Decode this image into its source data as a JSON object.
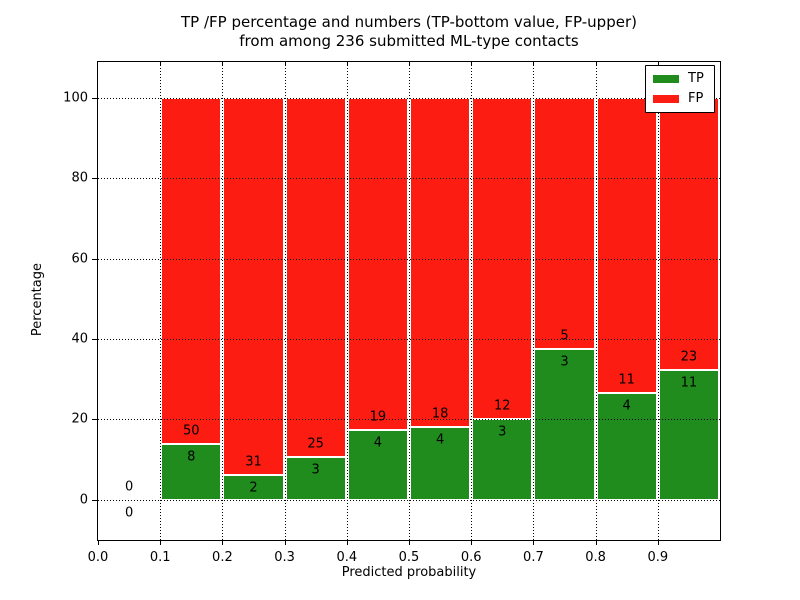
{
  "chart_data": {
    "type": "bar",
    "stacked": true,
    "title": "TP /FP percentage and numbers (TP-bottom value, FP-upper) from among 236 submitted ML-type contacts",
    "title_lines": [
      "TP /FP percentage and numbers (TP-bottom value, FP-upper)",
      "from among 236 submitted ML-type contacts"
    ],
    "xlabel": "Predicted probability",
    "ylabel": "Percentage",
    "total_contacts": 236,
    "xlim": [
      0.0,
      1.0
    ],
    "ylim": [
      -10,
      109
    ],
    "xticks": {
      "values": [
        0.0,
        0.1,
        0.2,
        0.3,
        0.4,
        0.5,
        0.6,
        0.7,
        0.8,
        0.9
      ],
      "labels": [
        "0.0",
        "0.1",
        "0.2",
        "0.3",
        "0.4",
        "0.5",
        "0.6",
        "0.7",
        "0.8",
        "0.9"
      ]
    },
    "yticks": {
      "values": [
        0,
        20,
        40,
        60,
        80,
        100
      ],
      "labels": [
        "0",
        "20",
        "40",
        "60",
        "80",
        "100"
      ]
    },
    "grid": {
      "on": true,
      "style": "dotted",
      "color": "#000000",
      "over_bars": true
    },
    "series": [
      {
        "name": "TP",
        "color": "#1f8c1d"
      },
      {
        "name": "FP",
        "color": "#fc1c12"
      }
    ],
    "legend": {
      "position": "upper right",
      "entries": [
        "TP",
        "FP"
      ]
    },
    "bins": [
      {
        "range": [
          0.0,
          0.1
        ],
        "tp": 0,
        "fp": 0
      },
      {
        "range": [
          0.1,
          0.2
        ],
        "tp": 8,
        "fp": 50
      },
      {
        "range": [
          0.2,
          0.3
        ],
        "tp": 2,
        "fp": 31
      },
      {
        "range": [
          0.3,
          0.4
        ],
        "tp": 3,
        "fp": 25
      },
      {
        "range": [
          0.4,
          0.5
        ],
        "tp": 4,
        "fp": 19
      },
      {
        "range": [
          0.5,
          0.6
        ],
        "tp": 4,
        "fp": 18
      },
      {
        "range": [
          0.6,
          0.7
        ],
        "tp": 3,
        "fp": 12
      },
      {
        "range": [
          0.7,
          0.8
        ],
        "tp": 3,
        "fp": 5
      },
      {
        "range": [
          0.8,
          0.9
        ],
        "tp": 4,
        "fp": 11
      },
      {
        "range": [
          0.9,
          1.0
        ],
        "tp": 11,
        "fp": 23
      }
    ],
    "bar_edge_color": "#ffffff"
  }
}
